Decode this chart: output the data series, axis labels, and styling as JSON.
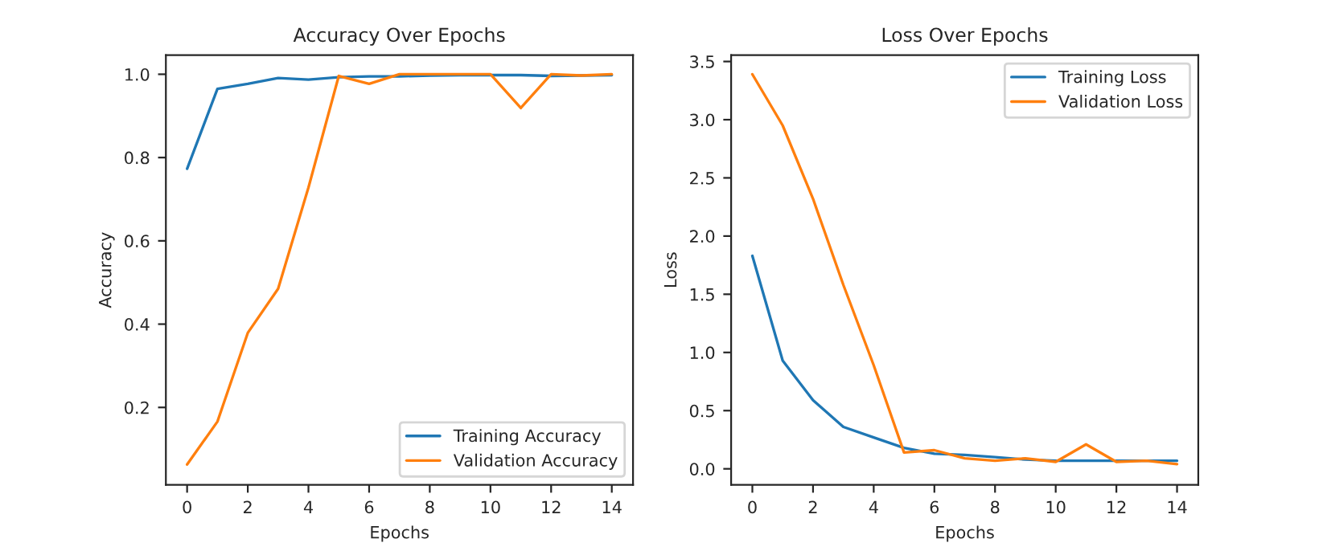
{
  "chart_data": [
    {
      "type": "line",
      "title": "Accuracy Over Epochs",
      "xlabel": "Epochs",
      "ylabel": "Accuracy",
      "x": [
        0,
        1,
        2,
        3,
        4,
        5,
        6,
        7,
        8,
        9,
        10,
        11,
        12,
        13,
        14
      ],
      "series": [
        {
          "name": "Training Accuracy",
          "color": "#1f77b4",
          "values": [
            0.773,
            0.965,
            0.977,
            0.991,
            0.987,
            0.993,
            0.995,
            0.995,
            0.997,
            0.998,
            0.998,
            0.998,
            0.996,
            0.997,
            0.998
          ]
        },
        {
          "name": "Validation Accuracy",
          "color": "#ff7f0e",
          "values": [
            0.063,
            0.166,
            0.379,
            0.485,
            0.728,
            0.996,
            0.977,
            1.0,
            1.0,
            1.0,
            1.0,
            0.919,
            1.0,
            0.997,
            1.0
          ]
        }
      ],
      "xlim": [
        -0.7,
        14.7
      ],
      "xticks": [
        0,
        2,
        4,
        6,
        8,
        10,
        12,
        14
      ],
      "ylim": [
        0.014,
        1.046
      ],
      "yticks": [
        0.2,
        0.4,
        0.6,
        0.8,
        {
          "value": 1.0,
          "label": "1.0"
        }
      ],
      "legend": "bottom right",
      "grid": false
    },
    {
      "type": "line",
      "title": "Loss Over Epochs",
      "xlabel": "Epochs",
      "ylabel": "Loss",
      "x": [
        0,
        1,
        2,
        3,
        4,
        5,
        6,
        7,
        8,
        9,
        10,
        11,
        12,
        13,
        14
      ],
      "series": [
        {
          "name": "Training Loss",
          "color": "#1f77b4",
          "values": [
            1.83,
            0.93,
            0.59,
            0.36,
            0.27,
            0.18,
            0.13,
            0.12,
            0.1,
            0.08,
            0.07,
            0.07,
            0.07,
            0.07,
            0.07
          ]
        },
        {
          "name": "Validation Loss",
          "color": "#ff7f0e",
          "values": [
            3.39,
            2.95,
            2.32,
            1.58,
            0.89,
            0.14,
            0.16,
            0.09,
            0.07,
            0.09,
            0.06,
            0.21,
            0.06,
            0.07,
            0.04
          ]
        }
      ],
      "xlim": [
        -0.7,
        14.7
      ],
      "xticks": [
        0,
        2,
        4,
        6,
        8,
        10,
        12,
        14
      ],
      "ylim": [
        -0.138,
        3.555
      ],
      "yticks": [
        {
          "value": 0,
          "label": "0.0"
        },
        0.5,
        {
          "value": 1,
          "label": "1.0"
        },
        1.5,
        {
          "value": 2,
          "label": "2.0"
        },
        2.5,
        {
          "value": 3,
          "label": "3.0"
        },
        3.5
      ],
      "legend": "top right",
      "grid": false
    }
  ]
}
